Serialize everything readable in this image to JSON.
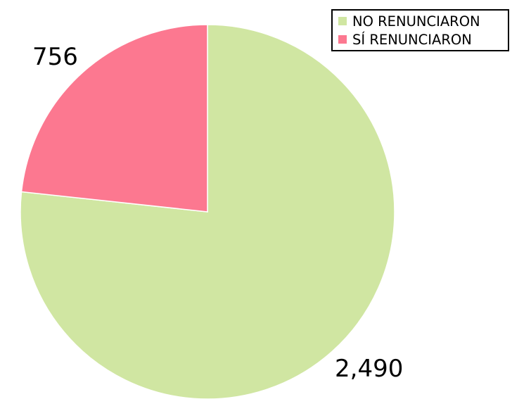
{
  "chart_data": {
    "type": "pie",
    "title": "",
    "categories": [
      "NO RENUNCIARON",
      "SÍ RENUNCIARON"
    ],
    "values": [
      2490,
      756
    ],
    "data_labels": [
      "2,490",
      "756"
    ],
    "colors": [
      "#d0e6a2",
      "#fc7890"
    ],
    "start_angle_deg": 0,
    "direction": "clockwise",
    "legend": {
      "position": "top-right",
      "entries": [
        "NO RENUNCIARON",
        "SÍ RENUNCIARON"
      ]
    }
  }
}
